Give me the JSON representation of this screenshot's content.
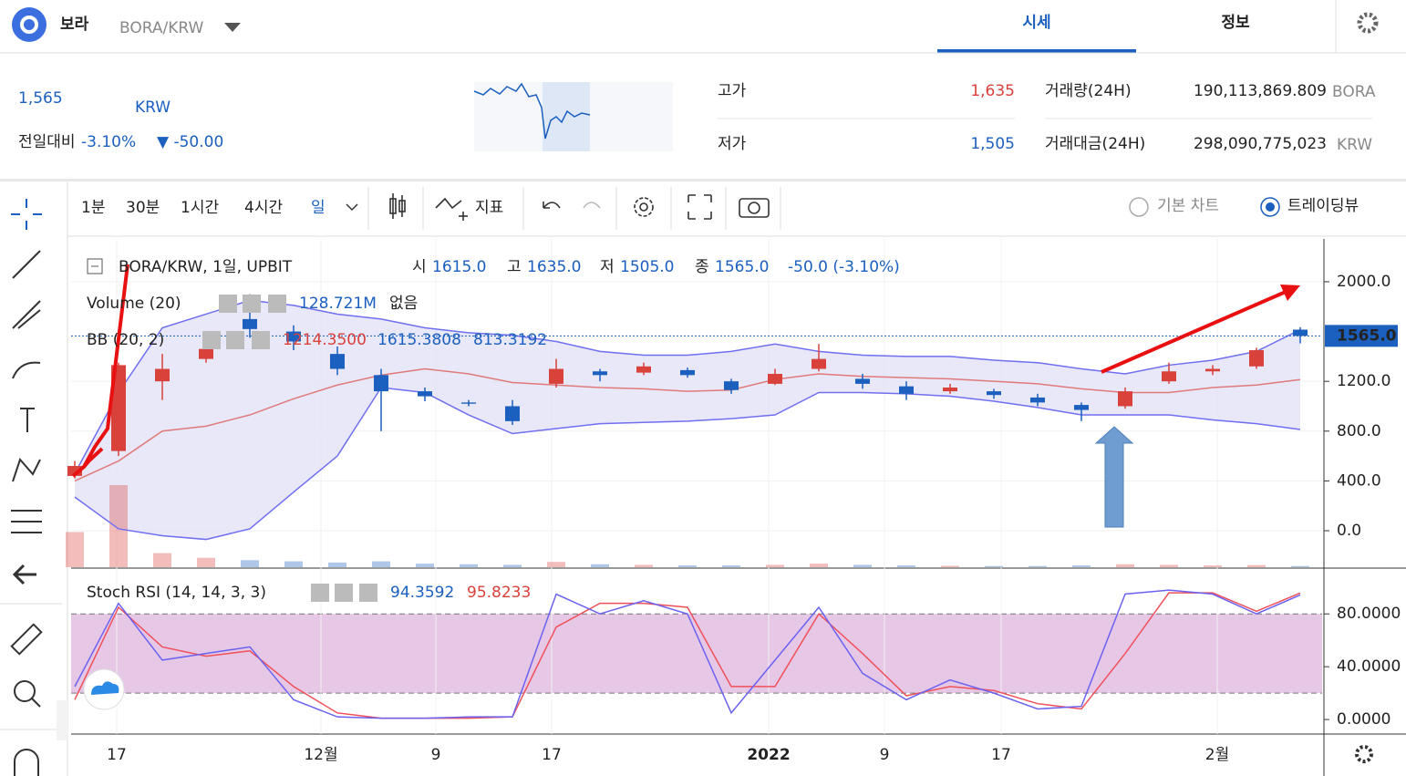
{
  "header": {
    "name": "보라",
    "pair": "BORA/KRW",
    "tabs": [
      "시세",
      "정보"
    ]
  },
  "price": {
    "value": "1,565",
    "unit": "KRW",
    "change_label": "전일대비",
    "change_pct": "-3.10%",
    "change_abs": "▼ -50.00"
  },
  "stats": {
    "high_label": "고가",
    "high": "1,635",
    "low_label": "저가",
    "low": "1,505",
    "volume_label": "거래량(24H)",
    "volume": "190,113,869.809",
    "volume_unit": "BORA",
    "turnover_label": "거래대금(24H)",
    "turnover": "298,090,775,023",
    "turnover_unit": "KRW"
  },
  "toolbar": {
    "intervals": [
      "1분",
      "30분",
      "1시간",
      "4시간",
      "일"
    ],
    "indicator": "지표",
    "view_basic": "기본 차트",
    "view_tradingview": "트레이딩뷰"
  },
  "legend": {
    "symbol": "BORA/KRW, 1일, UPBIT",
    "o_label": "시",
    "o": "1615.0",
    "h_label": "고",
    "h": "1635.0",
    "l_label": "저",
    "l": "1505.0",
    "c_label": "종",
    "c": "1565.0",
    "change": "-50.0 (-3.10%)",
    "volume_name": "Volume (20)",
    "volume_value": "128.721M",
    "volume_ma": "없음",
    "bb_name": "BB (20, 2)",
    "bb_mid": "1214.3500",
    "bb_upper": "1615.3808",
    "bb_lower": "813.3192",
    "stoch_name": "Stoch RSI (14, 14, 3, 3)",
    "stoch_k": "94.3592",
    "stoch_d": "95.8233"
  },
  "chart": {
    "type": "candlestick",
    "open": [
      440,
      640,
      1200,
      1380,
      1700,
      1600,
      1420,
      1250,
      1120,
      1030,
      1000,
      1180,
      1280,
      1270,
      1290,
      1200,
      1180,
      1300,
      1220,
      1160,
      1120,
      1120,
      1070,
      1010,
      1000,
      1200,
      1280,
      1320,
      1615
    ],
    "high": [
      560,
      1350,
      1420,
      1520,
      1900,
      1650,
      1480,
      1300,
      1150,
      1050,
      1050,
      1380,
      1300,
      1350,
      1310,
      1220,
      1300,
      1500,
      1260,
      1200,
      1180,
      1140,
      1100,
      1030,
      1150,
      1350,
      1330,
      1470,
      1635
    ],
    "low": [
      420,
      600,
      1050,
      1350,
      1550,
      1450,
      1250,
      800,
      1040,
      1000,
      850,
      1150,
      1200,
      1250,
      1230,
      1100,
      1170,
      1280,
      1140,
      1050,
      1100,
      1060,
      1000,
      880,
      980,
      1180,
      1250,
      1300,
      1505
    ],
    "close": [
      520,
      1330,
      1300,
      1460,
      1620,
      1520,
      1300,
      1120,
      1080,
      1020,
      880,
      1300,
      1250,
      1320,
      1250,
      1130,
      1260,
      1380,
      1180,
      1100,
      1150,
      1090,
      1030,
      970,
      1120,
      1280,
      1300,
      1450,
      1565
    ],
    "bb_upper": [
      460,
      1110,
      1630,
      1740,
      1850,
      1810,
      1740,
      1700,
      1630,
      1590,
      1570,
      1520,
      1440,
      1410,
      1410,
      1440,
      1500,
      1440,
      1410,
      1400,
      1400,
      1370,
      1350,
      1300,
      1260,
      1330,
      1370,
      1440,
      1615
    ],
    "bb_mid": [
      400,
      560,
      800,
      840,
      930,
      1060,
      1170,
      1250,
      1300,
      1260,
      1190,
      1170,
      1150,
      1140,
      1120,
      1130,
      1215,
      1260,
      1240,
      1230,
      1220,
      1200,
      1180,
      1140,
      1110,
      1110,
      1150,
      1170,
      1214
    ],
    "bb_lower": [
      270,
      15,
      -40,
      -70,
      15,
      310,
      600,
      1150,
      1110,
      930,
      780,
      820,
      860,
      870,
      880,
      900,
      930,
      1110,
      1110,
      1100,
      1080,
      1040,
      990,
      930,
      930,
      930,
      890,
      860,
      813
    ],
    "volume": [
      300,
      700,
      120,
      80,
      60,
      50,
      40,
      50,
      30,
      25,
      20,
      45,
      25,
      20,
      15,
      15,
      20,
      30,
      20,
      15,
      12,
      10,
      10,
      15,
      25,
      20,
      15,
      18,
      10
    ],
    "stoch_k": [
      25,
      88,
      45,
      50,
      55,
      15,
      2,
      1,
      1,
      2,
      2,
      95,
      80,
      90,
      80,
      5,
      45,
      85,
      35,
      15,
      30,
      20,
      8,
      10,
      95,
      98,
      95,
      80,
      94.36
    ],
    "stoch_d": [
      15,
      85,
      55,
      48,
      52,
      25,
      5,
      1,
      1,
      1,
      2,
      70,
      88,
      88,
      85,
      25,
      25,
      80,
      50,
      18,
      25,
      22,
      12,
      8,
      50,
      96,
      96,
      82,
      95.82
    ],
    "ylim": [
      -293,
      2344
    ],
    "yticks": [
      {
        "value": 2000,
        "label": "2000.0"
      },
      {
        "value": 1200,
        "label": "1200.0"
      },
      {
        "value": 800,
        "label": "800.0"
      },
      {
        "value": 400,
        "label": "400.0"
      },
      {
        "value": 0,
        "label": "0.0"
      }
    ],
    "last_price": {
      "value": 1565,
      "label": "1565.0"
    },
    "y2lim": [
      -11,
      114
    ],
    "y2ticks": [
      {
        "value": 80,
        "label": "80.0000"
      },
      {
        "value": 40,
        "label": "40.0000"
      },
      {
        "value": 0,
        "label": "0.0000"
      }
    ],
    "stoch_bands": [
      20,
      80
    ],
    "x_labels": [
      "17",
      "12월",
      "9",
      "17",
      "2022",
      "9",
      "17",
      "2월"
    ],
    "up_color": "#d9413b",
    "down_color": "#1b5fbf",
    "k_color": "#6b62f0",
    "d_color": "#f0505a",
    "bb_color": "#6f6ff0",
    "mid_color": "#e07a7a"
  }
}
